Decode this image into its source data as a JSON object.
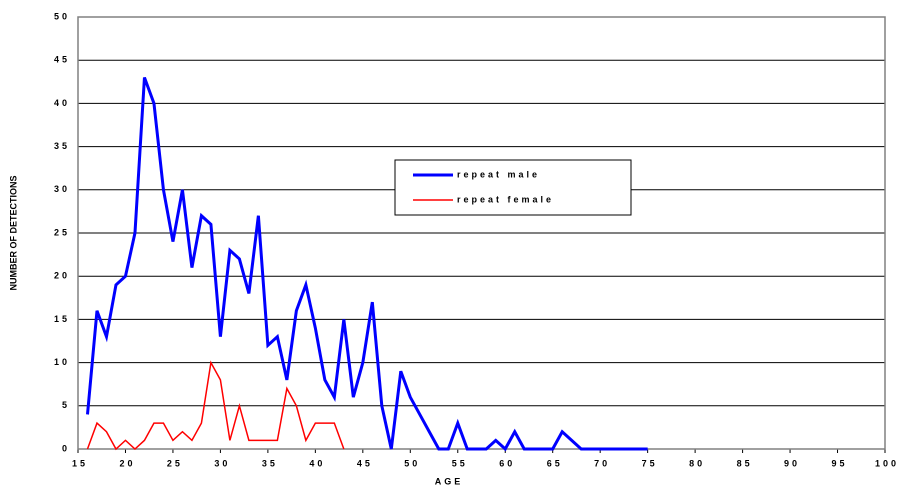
{
  "chart_data": {
    "type": "line",
    "x_label": "AGE",
    "y_label": "NUMBER OF DETECTIONS",
    "xlim": [
      15,
      100
    ],
    "xticks": [
      15,
      20,
      25,
      30,
      35,
      40,
      45,
      50,
      55,
      60,
      65,
      70,
      75,
      80,
      85,
      90,
      95,
      100
    ],
    "ylim": [
      0,
      50
    ],
    "yticks": [
      0,
      5,
      10,
      15,
      20,
      25,
      30,
      35,
      40,
      45,
      50
    ],
    "grid": true,
    "legend": "upper-center-right",
    "series": [
      {
        "name": "repeat male",
        "color": "#0000ff",
        "x": [
          16,
          17,
          18,
          19,
          20,
          21,
          22,
          23,
          24,
          25,
          26,
          27,
          28,
          29,
          30,
          31,
          32,
          33,
          34,
          35,
          36,
          37,
          38,
          39,
          40,
          41,
          42,
          43,
          44,
          45,
          46,
          47,
          48,
          49,
          50,
          51,
          52,
          53,
          54,
          55,
          56,
          57,
          58,
          59,
          60,
          61,
          62,
          63,
          64,
          65,
          66,
          67,
          68,
          69,
          70,
          71,
          72,
          73,
          74,
          75
        ],
        "values": [
          4,
          16,
          13,
          19,
          20,
          25,
          43,
          40,
          30,
          24,
          30,
          21,
          27,
          26,
          13,
          23,
          22,
          18,
          27,
          12,
          13,
          8,
          16,
          19,
          14,
          8,
          6,
          15,
          6,
          10,
          17,
          5,
          0,
          9,
          6,
          4,
          2,
          0,
          0,
          3,
          0,
          0,
          0,
          1,
          0,
          2,
          0,
          0,
          0,
          0,
          2,
          1,
          0,
          0,
          0,
          0,
          0,
          0,
          0,
          0
        ]
      },
      {
        "name": "repeat female",
        "color": "#ff0000",
        "x": [
          16,
          17,
          18,
          19,
          20,
          21,
          22,
          23,
          24,
          25,
          26,
          27,
          28,
          29,
          30,
          31,
          32,
          33,
          34,
          35,
          36,
          37,
          38,
          39,
          40,
          41,
          42,
          43
        ],
        "values": [
          0,
          3,
          2,
          0,
          1,
          0,
          1,
          3,
          3,
          1,
          2,
          1,
          3,
          10,
          8,
          1,
          5,
          1,
          1,
          1,
          1,
          7,
          5,
          1,
          3,
          3,
          3,
          0
        ]
      }
    ]
  }
}
